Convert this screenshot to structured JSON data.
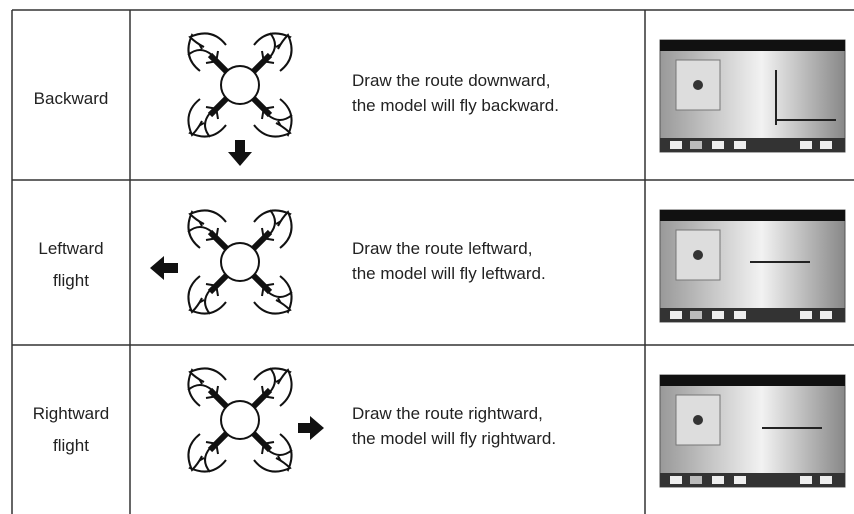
{
  "table": {
    "rows": [
      {
        "label": [
          "Backward"
        ],
        "description": [
          "Draw the route downward,",
          "the model will fly backward."
        ]
      },
      {
        "label": [
          "Leftward",
          "flight"
        ],
        "description": [
          "Draw the route leftward,",
          "the model will fly leftward."
        ]
      },
      {
        "label": [
          "Rightward",
          "flight"
        ],
        "description": [
          "Draw the route rightward,",
          "the model will fly rightward."
        ]
      }
    ]
  }
}
